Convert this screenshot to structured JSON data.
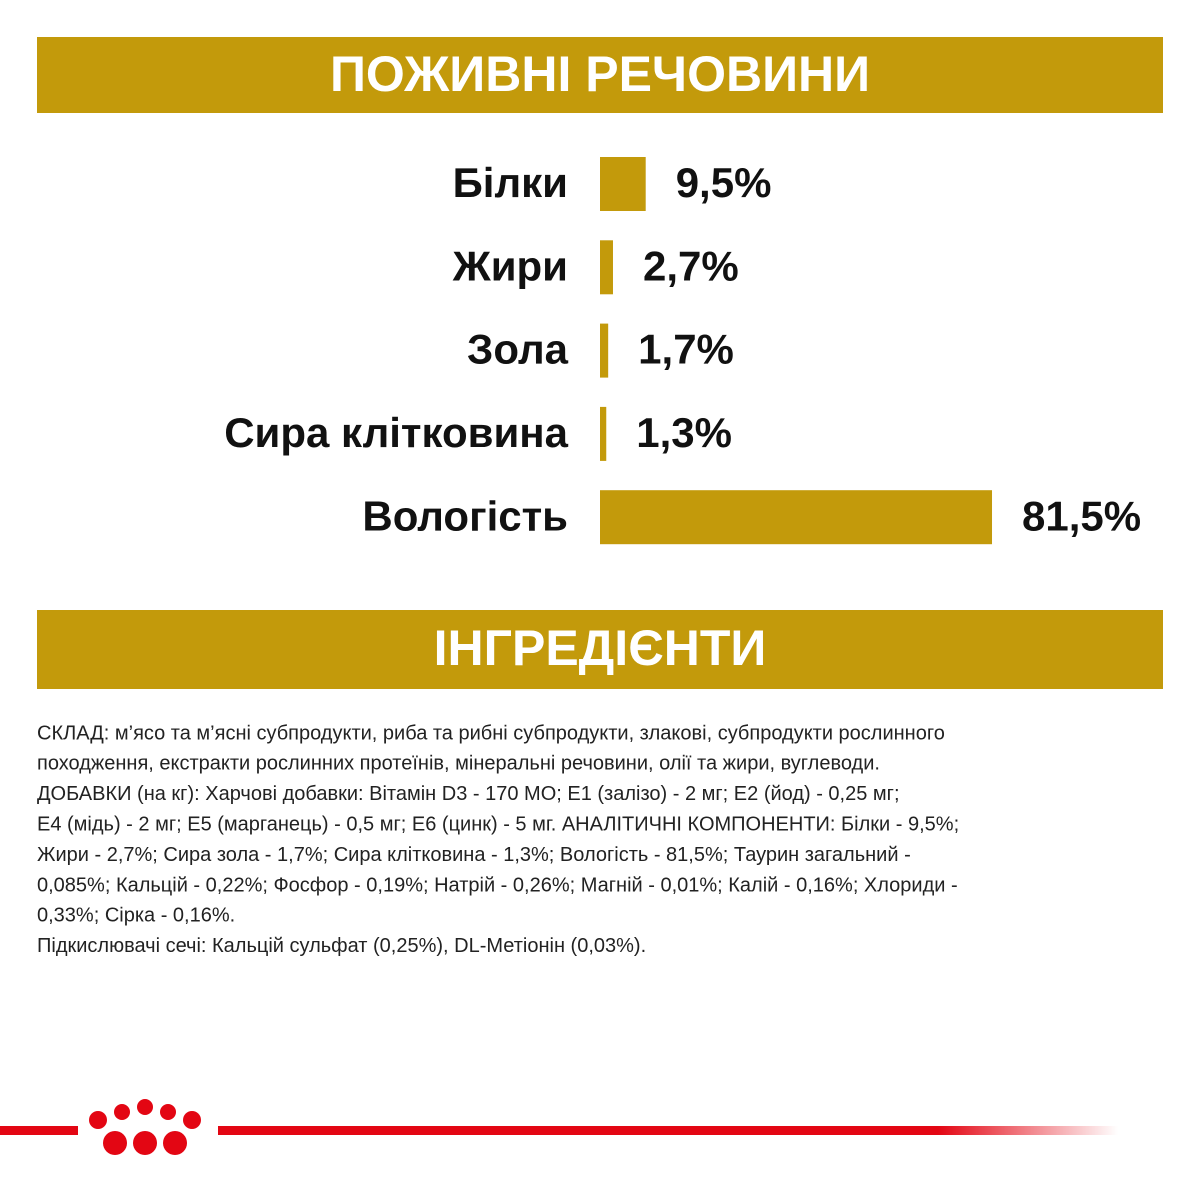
{
  "chart_data": {
    "type": "bar",
    "orientation": "horizontal",
    "title": "ПОЖИВНІ РЕЧОВИНИ",
    "categories": [
      "Білки",
      "Жири",
      "Зола",
      "Сира клітковина",
      "Вологість"
    ],
    "values": [
      9.5,
      2.7,
      1.7,
      1.3,
      81.5
    ],
    "value_labels": [
      "9,5%",
      "2,7%",
      "1,7%",
      "1,3%",
      "81,5%"
    ],
    "color": "#c39a0b"
  },
  "ingredients": {
    "title": "ІНГРЕДІЄНТИ",
    "lines": [
      "СКЛАД: м’ясо та м’ясні субпродукти, риба та рибні субпродукти, злакові, субпродукти рослинного",
      "походження, екстракти рослинних протеїнів, мінеральні речовини, олії та жири, вуглеводи.",
      "ДОБАВКИ (на кг): Харчові добавки: Вітамін D3 - 170 МО; Е1 (залізо) - 2 мг; Е2 (йод) - 0,25 мг;",
      "Е4 (мідь) - 2 мг; Е5 (марганець) - 0,5 мг; Е6 (цинк) - 5 мг. АНАЛІТИЧНІ КОМПОНЕНТИ: Білки - 9,5%;",
      "Жири - 2,7%; Сира зола - 1,7%; Сира клітковина - 1,3%; Вологість - 81,5%; Таурин загальний -",
      "0,085%; Кальцій - 0,22%; Фосфор - 0,19%; Натрій - 0,26%; Магній - 0,01%; Калій - 0,16%; Хлориди -",
      "0,33%; Сірка - 0,16%.",
      "Підкислювачі сечі: Кальцій сульфат (0,25%), DL-Метіонін (0,03%)."
    ]
  }
}
